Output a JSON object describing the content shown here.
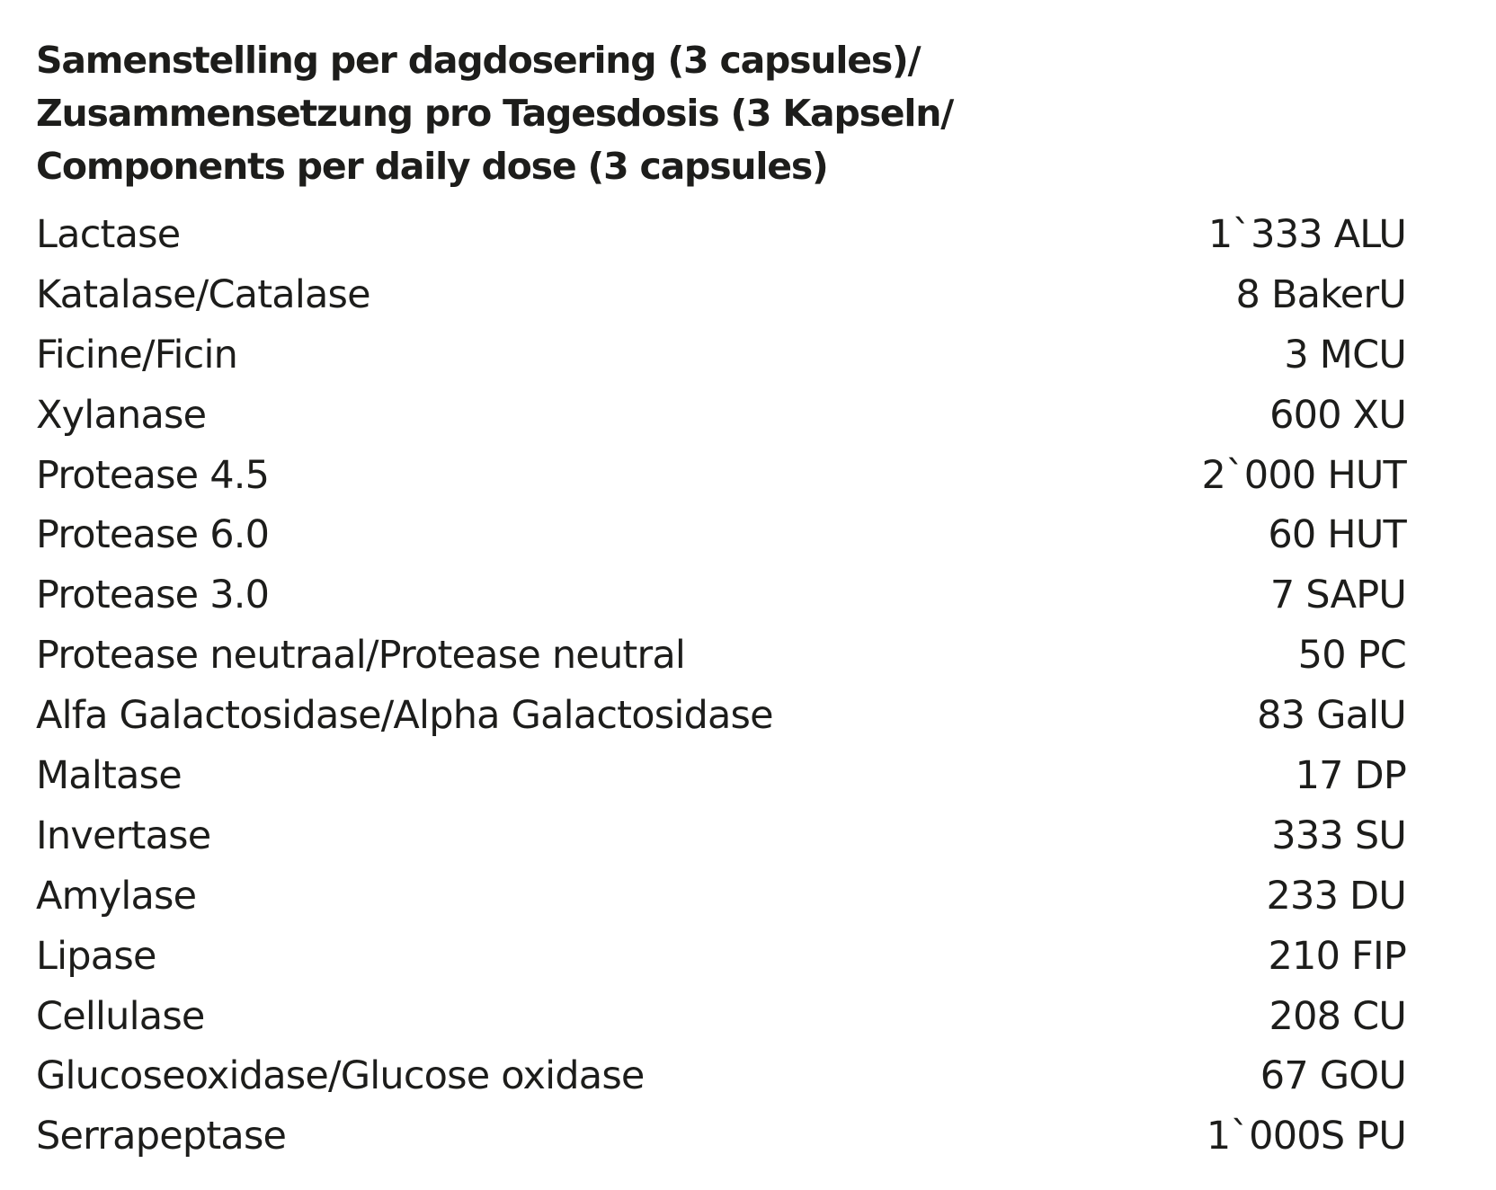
{
  "title": {
    "lines": [
      "Samenstelling per dagdosering (3 capsules)/",
      "Zusammensetzung pro Tagesdosis (3 Kapseln/",
      "Components per daily dose (3 capsules)"
    ]
  },
  "components": [
    {
      "name": "Lactase",
      "amount": "1`333 ALU"
    },
    {
      "name": "Katalase/Catalase",
      "amount": "8 BakerU"
    },
    {
      "name": "Ficine/Ficin",
      "amount": "3 MCU"
    },
    {
      "name": "Xylanase",
      "amount": "600 XU"
    },
    {
      "name": "Protease 4.5",
      "amount": "2`000 HUT"
    },
    {
      "name": "Protease 6.0",
      "amount": "60 HUT"
    },
    {
      "name": "Protease 3.0",
      "amount": "7 SAPU"
    },
    {
      "name": "Protease neutraal/Protease neutral",
      "amount": "50 PC"
    },
    {
      "name": "Alfa Galactosidase/Alpha Galactosidase",
      "amount": "83 GalU"
    },
    {
      "name": "Maltase",
      "amount": "17 DP"
    },
    {
      "name": "Invertase",
      "amount": "333 SU"
    },
    {
      "name": "Amylase",
      "amount": "233 DU"
    },
    {
      "name": "Lipase",
      "amount": "210 FIP"
    },
    {
      "name": "Cellulase",
      "amount": "208 CU"
    },
    {
      "name": "Glucoseoxidase/Glucose oxidase",
      "amount": "67 GOU"
    },
    {
      "name": "Serrapeptase",
      "amount": "1`000S PU"
    }
  ]
}
